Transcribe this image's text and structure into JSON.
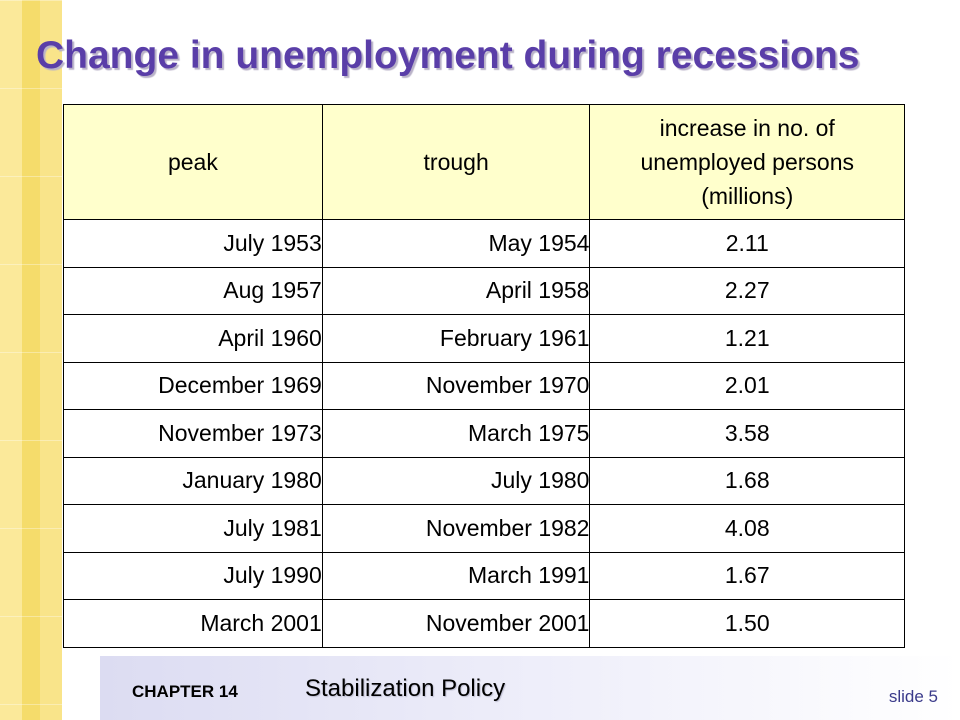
{
  "slide": {
    "title": "Change in unemployment during recessions",
    "footer": {
      "chapter": "CHAPTER 14",
      "chapter_title": "Stabilization Policy",
      "slide_number": "slide 5"
    },
    "colors": {
      "title": "#5a3ea8",
      "header_fill": "#ffffcc",
      "stripe": "#f7e27d"
    }
  },
  "table": {
    "headers": {
      "peak": "peak",
      "trough": "trough",
      "increase_line1": "increase in no. of",
      "increase_line2": "unemployed persons",
      "increase_line3": "(millions)"
    },
    "rows": [
      {
        "peak": "July 1953",
        "trough": "May 1954",
        "increase": "2.11"
      },
      {
        "peak": "Aug 1957",
        "trough": "April 1958",
        "increase": "2.27"
      },
      {
        "peak": "April 1960",
        "trough": "February 1961",
        "increase": "1.21"
      },
      {
        "peak": "December 1969",
        "trough": "November 1970",
        "increase": "2.01"
      },
      {
        "peak": "November 1973",
        "trough": "March 1975",
        "increase": "3.58"
      },
      {
        "peak": "January 1980",
        "trough": "July 1980",
        "increase": "1.68"
      },
      {
        "peak": "July 1981",
        "trough": "November 1982",
        "increase": "4.08"
      },
      {
        "peak": "July 1990",
        "trough": "March 1991",
        "increase": "1.67"
      },
      {
        "peak": "March 2001",
        "trough": "November 2001",
        "increase": "1.50"
      }
    ]
  }
}
